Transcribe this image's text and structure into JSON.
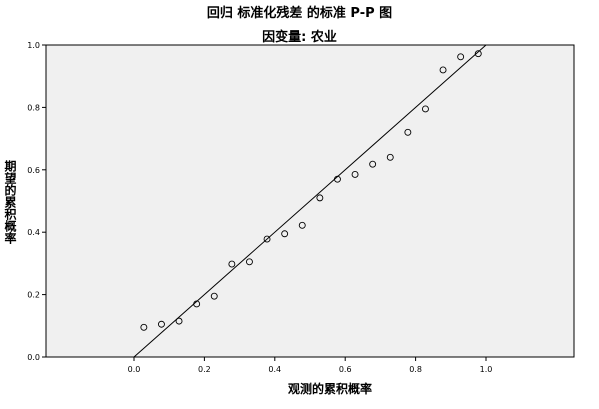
{
  "chart_data": {
    "type": "scatter",
    "title": "回归 标准化残差 的标准 P-P 图",
    "subtitle": "因变量: 农业",
    "xlabel": "观测的累积概率",
    "ylabel": "期望的累积概率",
    "xlim": [
      -0.35,
      1.25
    ],
    "ylim": [
      0.0,
      1.0
    ],
    "xticks": [
      "0.0",
      "0.2",
      "0.4",
      "0.6",
      "0.8",
      "1.0"
    ],
    "yticks": [
      "0.0",
      "0.2",
      "0.4",
      "0.6",
      "0.8",
      "1.0"
    ],
    "x": [
      0.028,
      0.078,
      0.128,
      0.178,
      0.228,
      0.278,
      0.328,
      0.378,
      0.428,
      0.478,
      0.528,
      0.578,
      0.628,
      0.678,
      0.728,
      0.778,
      0.828,
      0.878,
      0.928,
      0.978
    ],
    "y": [
      0.095,
      0.105,
      0.115,
      0.17,
      0.195,
      0.298,
      0.305,
      0.378,
      0.395,
      0.422,
      0.51,
      0.57,
      0.585,
      0.618,
      0.64,
      0.72,
      0.795,
      0.92,
      0.962,
      0.972
    ],
    "reference_line": [
      [
        0,
        0
      ],
      [
        1,
        1
      ]
    ],
    "grid": false,
    "legend": "none",
    "plot_background": "#f0f0f0"
  }
}
